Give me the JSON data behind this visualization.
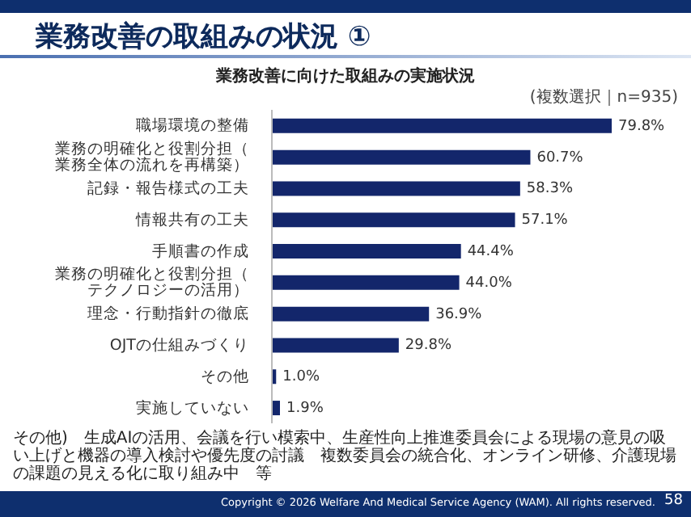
{
  "chart_data": {
    "type": "bar",
    "orientation": "horizontal",
    "title": "業務改善の取組みの状況 ①",
    "subtitle": "業務改善に向けた取組みの実施状況",
    "categories": [
      "職場環境の整備",
      "業務の明確化と役割分担（業務全体の流れを再構築）",
      "記録・報告様式の工夫",
      "情報共有の工夫",
      "手順書の作成",
      "業務の明確化と役割分担（テクノロジーの活用）",
      "理念・行動指針の徹底",
      "OJTの仕組みづくり",
      "その他",
      "実施していない"
    ],
    "values": [
      79.8,
      60.7,
      58.3,
      57.1,
      44.4,
      44.0,
      36.9,
      29.8,
      1.0,
      1.9
    ],
    "value_labels": [
      "79.8%",
      "60.7%",
      "58.3%",
      "57.1%",
      "44.4%",
      "44.0%",
      "36.9%",
      "29.8%",
      "1.0%",
      "1.9%"
    ],
    "color": "#13266b",
    "tick_labels": "y",
    "annotations": [
      "(複数選択｜n=935)",
      "その他)　生成AIの活用、会議を行い模索中、生産性向上推進委員会による現場の意見の吸い上げと機器の導入検討や優先度の討議　複数委員会の統合化、オンライン研修、介護現場の課題の見える化に取り組み中　等",
      "Copyright © 2026 Welfare And Medical Service Agency (WAM). All rights reserved.",
      "58"
    ]
  }
}
